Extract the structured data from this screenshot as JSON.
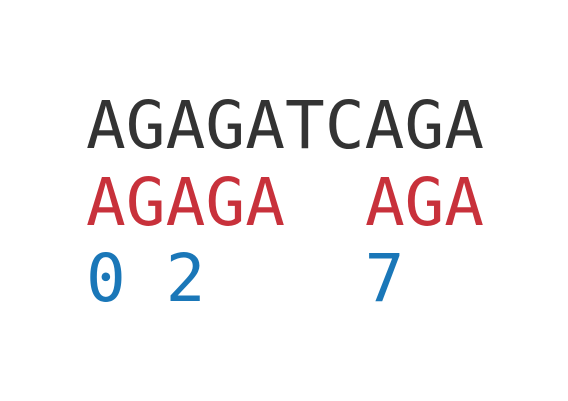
{
  "sequence": "AGAGATCAGA",
  "matches": [
    "AGAGA",
    "AGA"
  ],
  "positions": [
    0,
    2,
    7
  ]
}
